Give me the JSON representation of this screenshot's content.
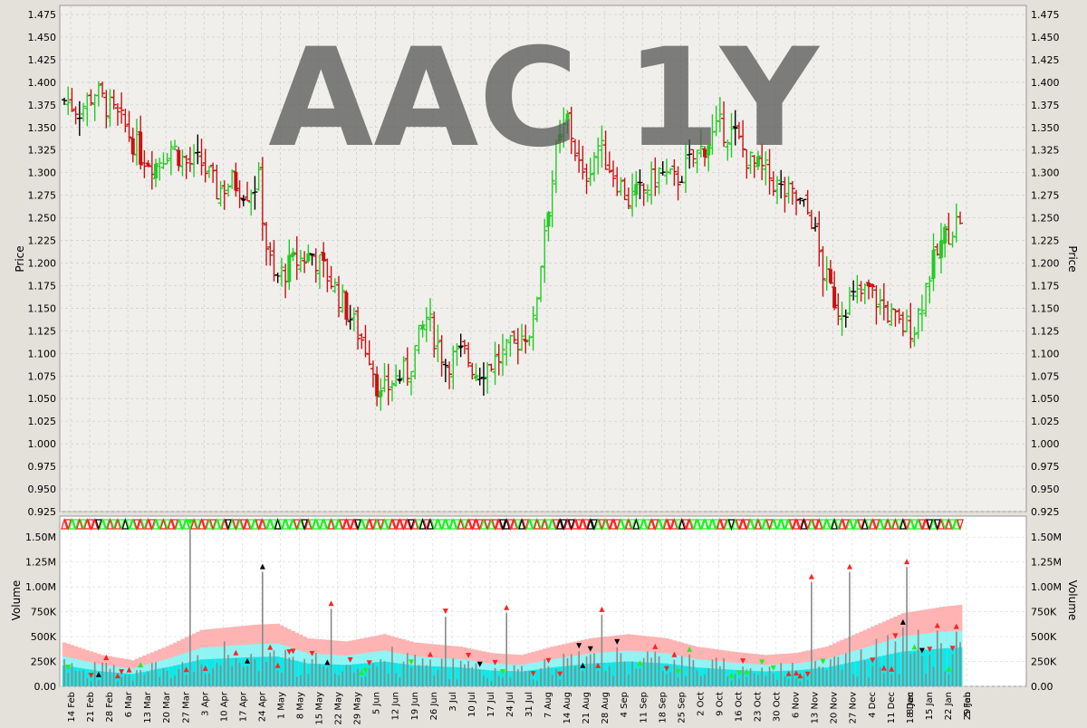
{
  "chart_data": [
    {
      "type": "ohlc",
      "title": "AAC 1Y",
      "ylabel": "Price",
      "ylim": [
        0.925,
        1.485
      ],
      "y_ticks": [
        "0.925",
        "0.950",
        "0.975",
        "1.000",
        "1.025",
        "1.050",
        "1.075",
        "1.100",
        "1.125",
        "1.150",
        "1.175",
        "1.200",
        "1.225",
        "1.250",
        "1.275",
        "1.300",
        "1.325",
        "1.350",
        "1.375",
        "1.400",
        "1.425",
        "1.450",
        "1.475"
      ],
      "grid": true,
      "colors": {
        "up": "#22cc22",
        "down": "#cc1111",
        "flat": "#000000",
        "background": "#f0efec",
        "grid": "#cccccc"
      },
      "price_anchors": [
        [
          0,
          1.38
        ],
        [
          4,
          1.37
        ],
        [
          8,
          1.39
        ],
        [
          12,
          1.37
        ],
        [
          16,
          1.35
        ],
        [
          20,
          1.32
        ],
        [
          24,
          1.31
        ],
        [
          28,
          1.33
        ],
        [
          32,
          1.31
        ],
        [
          36,
          1.31
        ],
        [
          40,
          1.28
        ],
        [
          44,
          1.29
        ],
        [
          48,
          1.28
        ],
        [
          51,
          1.29
        ],
        [
          53,
          1.22
        ],
        [
          55,
          1.18
        ],
        [
          60,
          1.2
        ],
        [
          65,
          1.21
        ],
        [
          70,
          1.18
        ],
        [
          75,
          1.14
        ],
        [
          80,
          1.1
        ],
        [
          83,
          1.05
        ],
        [
          86,
          1.07
        ],
        [
          90,
          1.08
        ],
        [
          95,
          1.14
        ],
        [
          100,
          1.09
        ],
        [
          105,
          1.1
        ],
        [
          108,
          1.08
        ],
        [
          112,
          1.09
        ],
        [
          116,
          1.1
        ],
        [
          120,
          1.12
        ],
        [
          123,
          1.13
        ],
        [
          126,
          1.24
        ],
        [
          129,
          1.32
        ],
        [
          132,
          1.36
        ],
        [
          136,
          1.29
        ],
        [
          140,
          1.33
        ],
        [
          144,
          1.3
        ],
        [
          148,
          1.27
        ],
        [
          152,
          1.28
        ],
        [
          156,
          1.3
        ],
        [
          160,
          1.29
        ],
        [
          164,
          1.31
        ],
        [
          168,
          1.33
        ],
        [
          172,
          1.35
        ],
        [
          176,
          1.34
        ],
        [
          180,
          1.31
        ],
        [
          184,
          1.3
        ],
        [
          188,
          1.28
        ],
        [
          192,
          1.27
        ],
        [
          196,
          1.25
        ],
        [
          199,
          1.19
        ],
        [
          203,
          1.15
        ],
        [
          207,
          1.16
        ],
        [
          211,
          1.17
        ],
        [
          215,
          1.15
        ],
        [
          219,
          1.13
        ],
        [
          223,
          1.13
        ],
        [
          227,
          1.19
        ],
        [
          231,
          1.23
        ],
        [
          235,
          1.25
        ]
      ]
    },
    {
      "type": "volume",
      "ylabel": "Volume",
      "ylim": [
        0,
        1620000
      ],
      "y_ticks": [
        "0.00",
        "250K",
        "500K",
        "750K",
        "1.00M",
        "1.25M",
        "1.50M"
      ],
      "band_colors": {
        "outer": "#ffb3b3",
        "middle": "#8ff5f5",
        "inner": "#11e6e6"
      },
      "bar_color": "#8a8a8a",
      "volume_band_anchors": [
        [
          0,
          420000
        ],
        [
          10,
          300000
        ],
        [
          18,
          250000
        ],
        [
          28,
          400000
        ],
        [
          36,
          540000
        ],
        [
          50,
          590000
        ],
        [
          56,
          600000
        ],
        [
          64,
          460000
        ],
        [
          74,
          430000
        ],
        [
          84,
          500000
        ],
        [
          92,
          420000
        ],
        [
          104,
          380000
        ],
        [
          112,
          320000
        ],
        [
          120,
          300000
        ],
        [
          128,
          380000
        ],
        [
          138,
          460000
        ],
        [
          148,
          500000
        ],
        [
          158,
          460000
        ],
        [
          166,
          380000
        ],
        [
          176,
          330000
        ],
        [
          184,
          300000
        ],
        [
          192,
          320000
        ],
        [
          200,
          380000
        ],
        [
          210,
          540000
        ],
        [
          220,
          700000
        ],
        [
          230,
          760000
        ],
        [
          235,
          780000
        ]
      ],
      "volume_spikes": [
        [
          33,
          1600000
        ],
        [
          52,
          1150000
        ],
        [
          70,
          780000
        ],
        [
          100,
          700000
        ],
        [
          116,
          740000
        ],
        [
          141,
          720000
        ],
        [
          196,
          1050000
        ],
        [
          206,
          1150000
        ],
        [
          221,
          1200000
        ]
      ]
    }
  ],
  "x_ticks": [
    "14 Feb",
    "21 Feb",
    "28 Feb",
    "6 Mar",
    "13 Mar",
    "20 Mar",
    "27 Mar",
    "3 Apr",
    "10 Apr",
    "17 Apr",
    "24 Apr",
    "1 May",
    "8 May",
    "15 May",
    "22 May",
    "29 May",
    "5 Jun",
    "12 Jun",
    "19 Jun",
    "26 Jun",
    "3 Jul",
    "10 Jul",
    "17 Jul",
    "24 Jul",
    "31 Jul",
    "7 Aug",
    "14 Aug",
    "21 Aug",
    "28 Aug",
    "4 Sep",
    "11 Sep",
    "18 Sep",
    "25 Sep",
    "2 Oct",
    "9 Oct",
    "16 Oct",
    "23 Oct",
    "30 Oct",
    "6 Nov",
    "13 Nov",
    "20 Nov",
    "27 Nov",
    "4 Dec",
    "11 Dec",
    "18 Dec",
    "8 Jan",
    "15 Jan",
    "22 Jan",
    "29 Jan",
    "5 Feb"
  ]
}
